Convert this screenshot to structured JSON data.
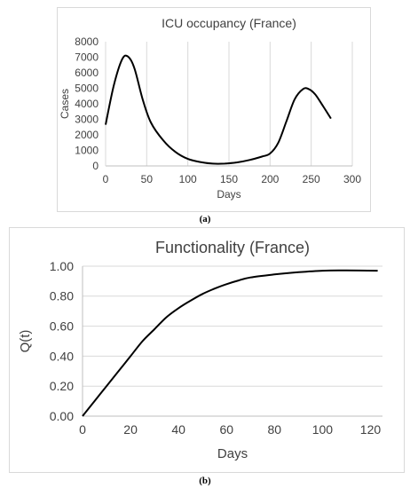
{
  "captions": {
    "a": "(a)",
    "b": "(b)"
  },
  "chart_data": [
    {
      "type": "line",
      "title": "ICU occupancy (France)",
      "xlabel": "Days",
      "ylabel": "Cases",
      "xlim": [
        0,
        300
      ],
      "ylim": [
        0,
        8000
      ],
      "xticks": [
        0,
        50,
        100,
        150,
        200,
        250,
        300
      ],
      "yticks": [
        0,
        1000,
        2000,
        3000,
        4000,
        5000,
        6000,
        7000,
        8000
      ],
      "grid": "vertical",
      "legend": "none",
      "series": [
        {
          "x": [
            0,
            10,
            20,
            27,
            35,
            45,
            55,
            70,
            85,
            100,
            115,
            130,
            145,
            160,
            175,
            190,
            200,
            210,
            220,
            230,
            240,
            247,
            255,
            265,
            274
          ],
          "y": [
            2650,
            5200,
            6850,
            7050,
            6300,
            4300,
            2800,
            1650,
            900,
            450,
            250,
            150,
            150,
            230,
            380,
            600,
            800,
            1500,
            2900,
            4300,
            4950,
            4950,
            4600,
            3800,
            3050
          ],
          "color": "#000000"
        }
      ]
    },
    {
      "type": "line",
      "title": "Functionality (France)",
      "xlabel": "Days",
      "ylabel": "Q(t)",
      "xlim": [
        0,
        125
      ],
      "ylim": [
        0,
        1
      ],
      "xticks": [
        0,
        20,
        40,
        60,
        80,
        100,
        120
      ],
      "yticks": [
        "0.00",
        "0.20",
        "0.40",
        "0.60",
        "0.80",
        "1.00"
      ],
      "grid": "horizontal",
      "legend": "none",
      "series": [
        {
          "x": [
            0,
            5,
            10,
            15,
            20,
            25,
            30,
            35,
            40,
            45,
            50,
            55,
            60,
            65,
            70,
            80,
            90,
            100,
            110,
            123
          ],
          "y": [
            0,
            0.1,
            0.2,
            0.3,
            0.4,
            0.5,
            0.58,
            0.66,
            0.72,
            0.77,
            0.815,
            0.85,
            0.88,
            0.905,
            0.925,
            0.945,
            0.96,
            0.97,
            0.972,
            0.97
          ],
          "color": "#000000"
        }
      ]
    }
  ]
}
